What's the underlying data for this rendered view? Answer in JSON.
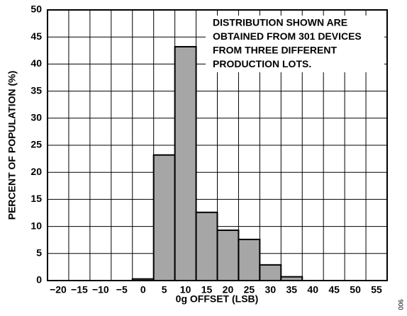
{
  "chart_data": {
    "type": "histogram",
    "x_label": "0g OFFSET (LSB)",
    "y_label": "PERCENT OF POPULATION (%)",
    "annotation": [
      "DISTRIBUTION SHOWN ARE",
      "OBTAINED FROM 301 DEVICES",
      "FROM THREE DIFFERENT",
      "PRODUCTION LOTS."
    ],
    "figure_code": "006",
    "bins": [
      -22.5,
      -17.5,
      -12.5,
      -7.5,
      -2.5,
      2.5,
      7.5,
      12.5,
      17.5,
      22.5,
      27.5,
      32.5,
      37.5,
      42.5,
      47.5,
      52.5,
      57.5
    ],
    "values": [
      0,
      0,
      0,
      0,
      0.3,
      23.2,
      43.2,
      12.6,
      9.3,
      7.6,
      2.9,
      0.7,
      0,
      0,
      0,
      0
    ],
    "color": "#a6a6a6",
    "xlim": [
      -22.5,
      57.5
    ],
    "xticks": [
      {
        "value": -20,
        "label": "−20"
      },
      {
        "value": -15,
        "label": "−15"
      },
      {
        "value": -10,
        "label": "−10"
      },
      {
        "value": -5,
        "label": "−5"
      },
      0,
      5,
      10,
      15,
      20,
      25,
      30,
      35,
      40,
      45,
      50,
      55
    ],
    "ylim": [
      0,
      50
    ],
    "yticks": [
      0,
      5,
      10,
      15,
      20,
      25,
      30,
      35,
      40,
      45,
      50
    ],
    "grid": true
  }
}
